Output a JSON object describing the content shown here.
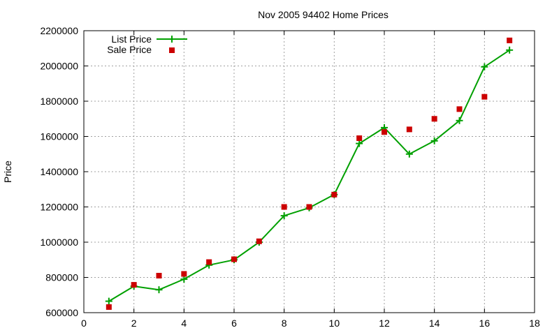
{
  "chart_data": {
    "type": "line",
    "title": "Nov 2005 94402 Home Prices",
    "xlabel": "",
    "ylabel": "Price",
    "xlim": [
      0,
      18
    ],
    "ylim": [
      600000,
      2200000
    ],
    "xticks": [
      0,
      2,
      4,
      6,
      8,
      10,
      12,
      14,
      16,
      18
    ],
    "yticks": [
      600000,
      800000,
      1000000,
      1200000,
      1400000,
      1600000,
      1800000,
      2000000,
      2200000
    ],
    "grid": true,
    "legend_position": "top-left",
    "series": [
      {
        "name": "List Price",
        "style": "line-with-plus-markers",
        "color": "#00a000",
        "x": [
          1,
          2,
          3,
          4,
          5,
          6,
          7,
          8,
          9,
          10,
          11,
          12,
          13,
          14,
          15,
          16,
          17
        ],
        "y": [
          665000,
          750000,
          730000,
          790000,
          870000,
          900000,
          1000000,
          1150000,
          1195000,
          1270000,
          1560000,
          1650000,
          1500000,
          1575000,
          1690000,
          1995000,
          2090000
        ]
      },
      {
        "name": "Sale Price",
        "style": "square-markers",
        "color": "#cc0000",
        "x": [
          1,
          2,
          3,
          4,
          5,
          6,
          7,
          8,
          9,
          10,
          11,
          12,
          13,
          14,
          15,
          16,
          17
        ],
        "y": [
          632000,
          758000,
          810000,
          820000,
          887000,
          903000,
          1005000,
          1200000,
          1200000,
          1270000,
          1590000,
          1625000,
          1640000,
          1700000,
          1755000,
          1825000,
          2145000
        ]
      }
    ]
  }
}
